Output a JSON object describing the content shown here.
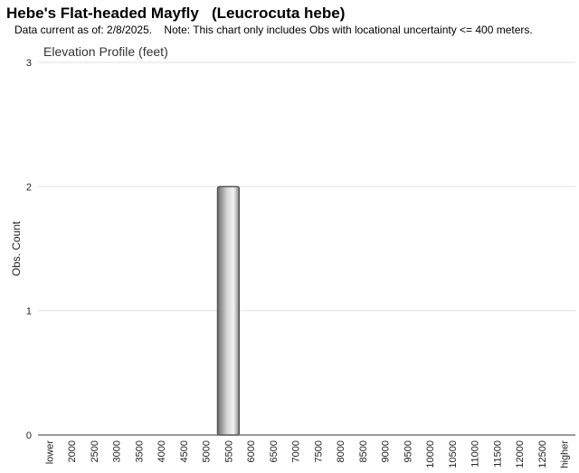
{
  "chart_data": {
    "type": "bar",
    "title": "Hebe's Flat-headed Mayfly   (Leucrocuta hebe)",
    "subtitle": "Data current as of: 2/8/2025.    Note: This chart only includes Obs with locational uncertainty <= 400 meters.",
    "chart_title": "Elevation Profile (feet)",
    "y_label": "Obs. Count",
    "categories": [
      "lower",
      "2000",
      "2500",
      "3000",
      "3500",
      "4000",
      "4500",
      "5000",
      "5500",
      "6000",
      "6500",
      "7000",
      "7500",
      "8000",
      "8500",
      "9000",
      "9500",
      "10000",
      "10500",
      "11000",
      "11500",
      "12000",
      "12500",
      "higher"
    ],
    "values": [
      0,
      0,
      0,
      0,
      0,
      0,
      0,
      0,
      2,
      0,
      0,
      0,
      0,
      0,
      0,
      0,
      0,
      0,
      0,
      0,
      0,
      0,
      0,
      0
    ],
    "color": "#555555",
    "ylim": [
      0,
      3
    ],
    "yticks": [
      0,
      1,
      2,
      3
    ],
    "grid": true
  }
}
